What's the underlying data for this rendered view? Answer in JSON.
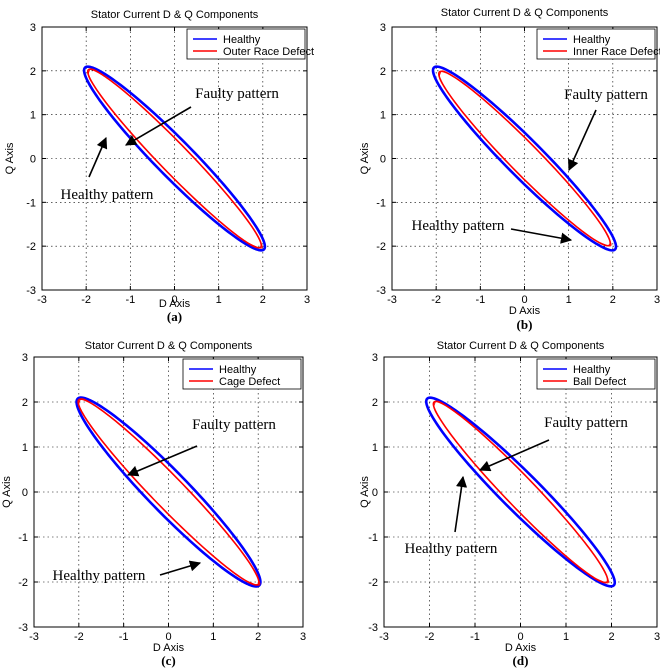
{
  "panels": [
    {
      "title": "Stator Current D & Q Components",
      "xlabel": "D Axis",
      "ylabel": "Q Axis",
      "panel_label": "(a)",
      "legend": [
        "Healthy",
        "Outer Race Defect"
      ],
      "annotations": {
        "faulty": "Faulty pattern",
        "healthy": "Healthy pattern"
      }
    },
    {
      "title": "Stator Current D & Q Components",
      "xlabel": "D Axis",
      "ylabel": "Q Axis",
      "panel_label": "(b)",
      "legend": [
        "Healthy",
        "Inner Race Defect"
      ],
      "annotations": {
        "faulty": "Faulty pattern",
        "healthy": "Healthy pattern"
      }
    },
    {
      "title": "Stator Current D & Q Components",
      "xlabel": "D Axis",
      "ylabel": "Q Axis",
      "panel_label": "(c)",
      "legend": [
        "Healthy",
        "Cage Defect"
      ],
      "annotations": {
        "faulty": "Faulty pattern",
        "healthy": "Healthy pattern"
      }
    },
    {
      "title": "Stator Current D & Q Components",
      "xlabel": "D Axis",
      "ylabel": "Q Axis",
      "panel_label": "(d)",
      "legend": [
        "Healthy",
        "Ball Defect"
      ],
      "annotations": {
        "faulty": "Faulty pattern",
        "healthy": "Healthy pattern"
      }
    }
  ],
  "chart_data": [
    {
      "type": "line",
      "title": "Stator Current D & Q Components",
      "xlabel": "D Axis",
      "ylabel": "Q Axis",
      "xlim": [
        -3,
        3
      ],
      "ylim": [
        -3,
        3
      ],
      "xticks": [
        -3,
        -2,
        -1,
        0,
        1,
        2,
        3
      ],
      "yticks": [
        -3,
        -2,
        -1,
        0,
        1,
        2,
        3
      ],
      "grid": true,
      "legend_position": "top-right",
      "series": [
        {
          "name": "Healthy",
          "color": "#0000ff",
          "center": [
            0,
            0
          ],
          "end_points": [
            [
              -2.05,
              2.1
            ],
            [
              2.0,
              -2.05
            ]
          ],
          "minor_half_width": 0.42
        },
        {
          "name": "Outer Race Defect",
          "color": "#ff0000",
          "center": [
            0,
            0
          ],
          "end_points": [
            [
              -1.95,
              2.1
            ],
            [
              1.95,
              -1.95
            ]
          ],
          "minor_half_width": 0.33
        }
      ]
    },
    {
      "type": "line",
      "title": "Stator Current D & Q Components",
      "xlabel": "D Axis",
      "ylabel": "Q Axis",
      "xlim": [
        -3,
        3
      ],
      "ylim": [
        -3,
        3
      ],
      "xticks": [
        -3,
        -2,
        -1,
        0,
        1,
        2,
        3
      ],
      "yticks": [
        -3,
        -2,
        -1,
        0,
        1,
        2,
        3
      ],
      "grid": true,
      "legend_position": "top-right",
      "series": [
        {
          "name": "Healthy",
          "color": "#0000ff",
          "center": [
            0,
            0
          ],
          "end_points": [
            [
              -2.05,
              2.1
            ],
            [
              2.05,
              -2.05
            ]
          ],
          "minor_half_width": 0.42
        },
        {
          "name": "Inner Race Defect",
          "color": "#ff0000",
          "center": [
            0,
            0
          ],
          "end_points": [
            [
              -1.95,
              2.05
            ],
            [
              1.9,
              -1.9
            ]
          ],
          "minor_half_width": 0.34
        }
      ]
    },
    {
      "type": "line",
      "title": "Stator Current D & Q Components",
      "xlabel": "D Axis",
      "ylabel": "Q Axis",
      "xlim": [
        -3,
        3
      ],
      "ylim": [
        -3,
        3
      ],
      "xticks": [
        -3,
        -2,
        -1,
        0,
        1,
        2,
        3
      ],
      "yticks": [
        -3,
        -2,
        -1,
        0,
        1,
        2,
        3
      ],
      "grid": true,
      "legend_position": "top-right",
      "series": [
        {
          "name": "Healthy",
          "color": "#0000ff",
          "center": [
            0,
            0
          ],
          "end_points": [
            [
              -2.05,
              2.1
            ],
            [
              2.0,
              -2.05
            ]
          ],
          "minor_half_width": 0.45
        },
        {
          "name": "Cage Defect",
          "color": "#ff0000",
          "center": [
            0,
            0
          ],
          "end_points": [
            [
              -2.15,
              2.15
            ],
            [
              1.85,
              -1.95
            ]
          ],
          "minor_half_width": 0.35
        }
      ]
    },
    {
      "type": "line",
      "title": "Stator Current D & Q Components",
      "xlabel": "D Axis",
      "ylabel": "Q Axis",
      "xlim": [
        -3,
        3
      ],
      "ylim": [
        -3,
        3
      ],
      "xticks": [
        -3,
        -2,
        -1,
        0,
        1,
        2,
        3
      ],
      "yticks": [
        -3,
        -2,
        -1,
        0,
        1,
        2,
        3
      ],
      "grid": true,
      "legend_position": "top-right",
      "series": [
        {
          "name": "Healthy",
          "color": "#0000ff",
          "center": [
            0,
            0
          ],
          "end_points": [
            [
              -2.05,
              2.1
            ],
            [
              2.05,
              -2.05
            ]
          ],
          "minor_half_width": 0.42
        },
        {
          "name": "Ball Defect",
          "color": "#ff0000",
          "center": [
            0,
            0
          ],
          "end_points": [
            [
              -1.95,
              2.05
            ],
            [
              1.85,
              -1.95
            ]
          ],
          "minor_half_width": 0.33
        }
      ]
    }
  ]
}
